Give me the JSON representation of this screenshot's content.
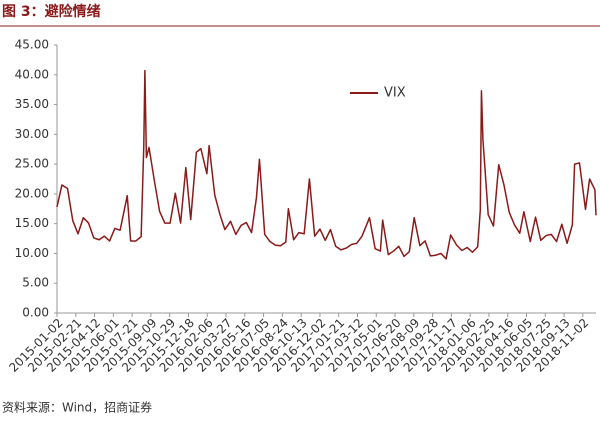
{
  "chart_data": {
    "type": "line",
    "title": "图 3：避险情绪",
    "source": "资料来源：Wind，招商证券",
    "x": [
      "2015-01-02",
      "2015-01-15",
      "2015-01-30",
      "2015-02-13",
      "2015-02-27",
      "2015-03-13",
      "2015-03-27",
      "2015-04-10",
      "2015-04-24",
      "2015-05-08",
      "2015-05-22",
      "2015-06-05",
      "2015-06-19",
      "2015-07-08",
      "2015-07-17",
      "2015-07-31",
      "2015-08-14",
      "2015-08-21",
      "2015-08-24",
      "2015-08-28",
      "2015-09-04",
      "2015-09-18",
      "2015-10-02",
      "2015-10-16",
      "2015-10-30",
      "2015-11-13",
      "2015-11-27",
      "2015-12-11",
      "2015-12-24",
      "2016-01-08",
      "2016-01-20",
      "2016-02-05",
      "2016-02-11",
      "2016-02-26",
      "2016-03-11",
      "2016-03-24",
      "2016-04-08",
      "2016-04-22",
      "2016-05-06",
      "2016-05-20",
      "2016-06-03",
      "2016-06-16",
      "2016-06-24",
      "2016-07-08",
      "2016-07-22",
      "2016-08-05",
      "2016-08-19",
      "2016-09-02",
      "2016-09-09",
      "2016-09-23",
      "2016-10-07",
      "2016-10-21",
      "2016-11-04",
      "2016-11-18",
      "2016-12-02",
      "2016-12-16",
      "2016-12-30",
      "2017-01-13",
      "2017-01-27",
      "2017-02-10",
      "2017-02-24",
      "2017-03-10",
      "2017-03-24",
      "2017-04-13",
      "2017-04-28",
      "2017-05-12",
      "2017-05-18",
      "2017-06-02",
      "2017-06-16",
      "2017-06-30",
      "2017-07-14",
      "2017-07-28",
      "2017-08-10",
      "2017-08-25",
      "2017-09-08",
      "2017-09-22",
      "2017-10-06",
      "2017-10-20",
      "2017-11-03",
      "2017-11-15",
      "2017-12-01",
      "2017-12-15",
      "2017-12-29",
      "2018-01-12",
      "2018-01-26",
      "2018-02-02",
      "2018-02-05",
      "2018-02-09",
      "2018-02-23",
      "2018-03-09",
      "2018-03-23",
      "2018-04-06",
      "2018-04-20",
      "2018-05-04",
      "2018-05-18",
      "2018-05-29",
      "2018-06-15",
      "2018-06-29",
      "2018-07-13",
      "2018-07-27",
      "2018-08-10",
      "2018-08-24",
      "2018-09-07",
      "2018-09-21",
      "2018-10-05",
      "2018-10-11",
      "2018-10-24",
      "2018-11-09",
      "2018-11-20",
      "2018-12-04",
      "2018-12-07"
    ],
    "series": [
      {
        "name": "VIX",
        "color": "#8b1a1a",
        "values": [
          17.8,
          21.5,
          20.9,
          15.5,
          13.3,
          16.0,
          15.1,
          12.6,
          12.3,
          12.9,
          12.1,
          14.2,
          13.9,
          19.7,
          12.1,
          12.1,
          12.8,
          28.0,
          40.7,
          26.1,
          27.8,
          22.3,
          17.1,
          15.1,
          15.1,
          20.1,
          15.1,
          24.4,
          15.7,
          27.0,
          27.6,
          23.4,
          28.1,
          19.8,
          16.5,
          14.0,
          15.4,
          13.2,
          14.7,
          15.2,
          13.5,
          19.4,
          25.8,
          13.2,
          12.0,
          11.4,
          11.3,
          11.9,
          17.5,
          12.3,
          13.5,
          13.3,
          22.5,
          12.9,
          14.1,
          12.2,
          14.0,
          11.2,
          10.6,
          10.9,
          11.5,
          11.7,
          12.9,
          16.0,
          10.8,
          10.4,
          15.6,
          9.8,
          10.4,
          11.2,
          9.5,
          10.3,
          16.0,
          11.3,
          12.1,
          9.6,
          9.7,
          10.0,
          9.1,
          13.1,
          11.4,
          10.5,
          11.0,
          10.2,
          11.1,
          17.3,
          37.3,
          29.1,
          16.5,
          14.6,
          24.9,
          21.5,
          16.9,
          14.8,
          13.4,
          17.0,
          12.0,
          16.1,
          12.2,
          13.0,
          13.2,
          12.0,
          14.9,
          11.7,
          14.8,
          25.0,
          25.2,
          17.4,
          22.5,
          20.7,
          16.4
        ]
      }
    ],
    "xlim": [
      "2015-01-02",
      "2018-12-07"
    ],
    "xticks": [
      "2015-01-02",
      "2015-02-21",
      "2015-04-12",
      "2015-06-01",
      "2015-07-21",
      "2015-09-09",
      "2015-10-29",
      "2015-12-18",
      "2016-02-06",
      "2016-03-27",
      "2016-05-16",
      "2016-07-05",
      "2016-08-24",
      "2016-10-13",
      "2016-12-02",
      "2017-01-21",
      "2017-03-12",
      "2017-05-01",
      "2017-06-20",
      "2017-08-09",
      "2017-09-28",
      "2017-11-17",
      "2018-01-06",
      "2018-02-25",
      "2018-04-16",
      "2018-06-05",
      "2018-07-25",
      "2018-09-13",
      "2018-11-02"
    ],
    "ylim": [
      0,
      45
    ],
    "yticks": [
      {
        "value": 0,
        "label": "0.00"
      },
      {
        "value": 5,
        "label": "5.00"
      },
      {
        "value": 10,
        "label": "10.00"
      },
      {
        "value": 15,
        "label": "15.00"
      },
      {
        "value": 20,
        "label": "20.00"
      },
      {
        "value": 25,
        "label": "25.00"
      },
      {
        "value": 30,
        "label": "30.00"
      },
      {
        "value": 35,
        "label": "35.00"
      },
      {
        "value": 40,
        "label": "40.00"
      },
      {
        "value": 45,
        "label": "45.00"
      }
    ],
    "grid": false
  }
}
